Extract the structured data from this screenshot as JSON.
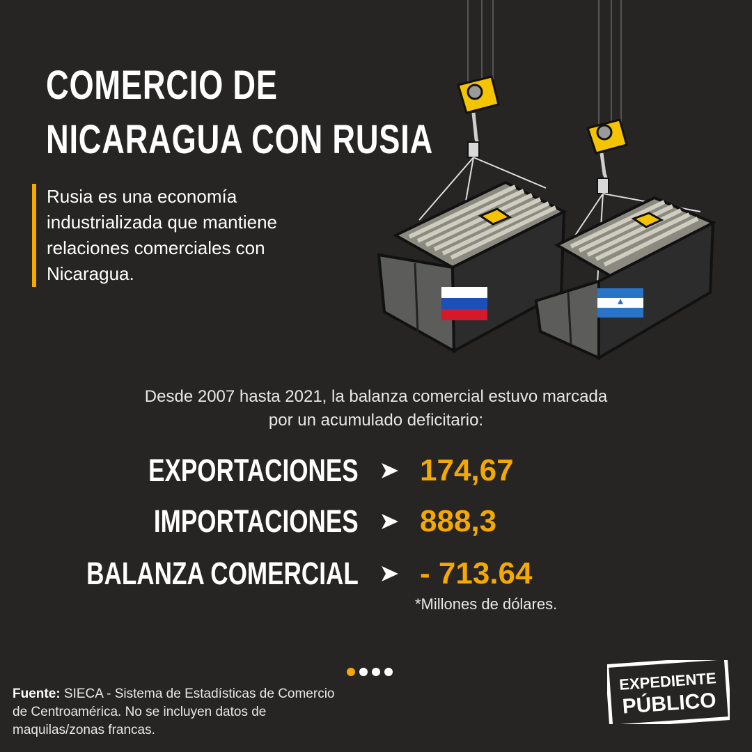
{
  "title": {
    "line1": "COMERCIO DE",
    "line2": "NICARAGUA CON RUSIA"
  },
  "intro": "Rusia es una economía industrializada que mantiene relaciones comerciales con Nicaragua.",
  "lead": {
    "line1": "Desde 2007 hasta 2021, la balanza comercial estuvo  marcada",
    "line2": "por un acumulado deficitario:"
  },
  "stats": [
    {
      "label": "EXPORTACIONES",
      "value": "174,67"
    },
    {
      "label": "IMPORTACIONES",
      "value": "888,3"
    },
    {
      "label": "BALANZA COMERCIAL",
      "value": "- 713.64"
    }
  ],
  "unit_note": "*Millones de dólares.",
  "source": {
    "label": "Fuente:",
    "text": "SIECA - Sistema de Estadísticas de Comercio de Centroamérica. No se incluyen datos de maquilas/zonas francas."
  },
  "pagination": {
    "current": 1,
    "total": 4
  },
  "logo": {
    "line1": "EXPEDIENTE",
    "line2": "PÚBLICO"
  },
  "icons": [
    "crane-hook-icon",
    "shipping-container-icon",
    "russia-flag-icon",
    "nicaragua-flag-icon",
    "arrow-right-icon"
  ],
  "colors": {
    "background": "#262524",
    "accent": "#f5a800",
    "text": "#ffffff"
  }
}
